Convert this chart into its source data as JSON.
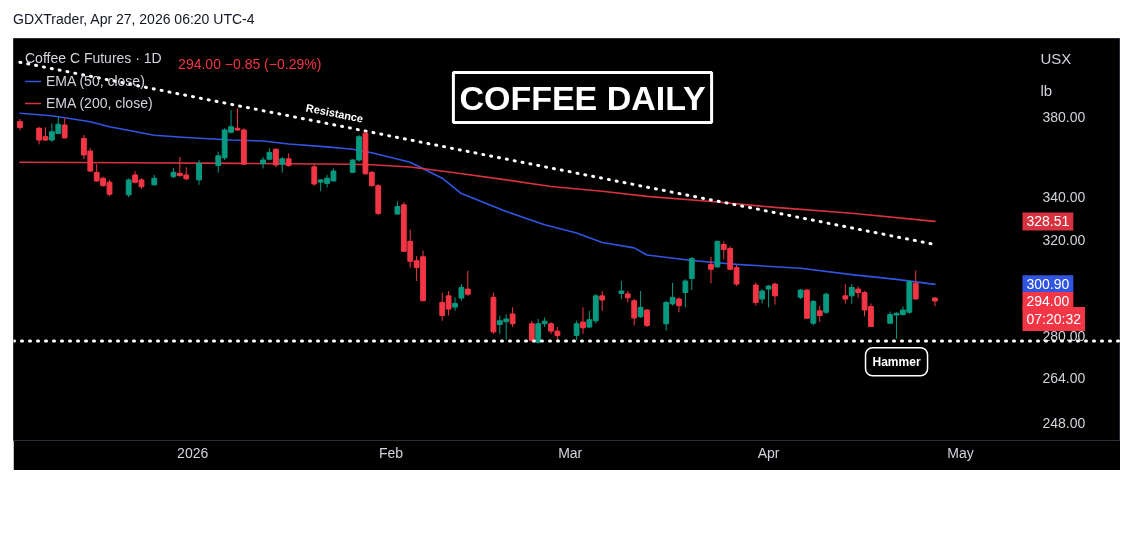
{
  "chart_data": {
    "type": "candlestick",
    "title": "COFFEE DAILY",
    "legend_title": "Coffee C Futures · 1D",
    "legend": "top left",
    "log": true,
    "x": [
      "2025-12-05",
      "2025-12-08",
      "2025-12-09",
      "2025-12-10",
      "2025-12-11",
      "2025-12-12",
      "2025-12-15",
      "2025-12-16",
      "2025-12-17",
      "2025-12-18",
      "2025-12-19",
      "2025-12-22",
      "2025-12-23",
      "2025-12-24",
      "2025-12-26",
      "2025-12-29",
      "2025-12-30",
      "2025-12-31",
      "2026-01-02",
      "2026-01-05",
      "2026-01-06",
      "2026-01-07",
      "2026-01-08",
      "2026-01-09",
      "2026-01-12",
      "2026-01-13",
      "2026-01-14",
      "2026-01-15",
      "2026-01-16",
      "2026-01-20",
      "2026-01-21",
      "2026-01-22",
      "2026-01-23",
      "2026-01-26",
      "2026-01-27",
      "2026-01-28",
      "2026-01-29",
      "2026-01-30",
      "2026-02-02",
      "2026-02-03",
      "2026-02-04",
      "2026-02-05",
      "2026-02-06",
      "2026-02-09",
      "2026-02-10",
      "2026-02-11",
      "2026-02-12",
      "2026-02-13",
      "2026-02-17",
      "2026-02-18",
      "2026-02-19",
      "2026-02-20",
      "2026-02-23",
      "2026-02-24",
      "2026-02-25",
      "2026-02-26",
      "2026-02-27",
      "2026-03-02",
      "2026-03-03",
      "2026-03-04",
      "2026-03-05",
      "2026-03-06",
      "2026-03-09",
      "2026-03-10",
      "2026-03-11",
      "2026-03-12",
      "2026-03-13",
      "2026-03-16",
      "2026-03-17",
      "2026-03-18",
      "2026-03-19",
      "2026-03-20",
      "2026-03-23",
      "2026-03-24",
      "2026-03-25",
      "2026-03-26",
      "2026-03-27",
      "2026-03-30",
      "2026-03-31",
      "2026-04-01",
      "2026-04-02",
      "2026-04-06",
      "2026-04-07",
      "2026-04-08",
      "2026-04-09",
      "2026-04-10",
      "2026-04-13",
      "2026-04-14",
      "2026-04-15",
      "2026-04-16",
      "2026-04-17",
      "2026-04-20",
      "2026-04-21",
      "2026-04-22",
      "2026-04-23",
      "2026-04-24",
      "2026-04-27"
    ],
    "ohlc": [
      [
        377.6,
        379.0,
        373.0,
        374.5
      ],
      [
        374.1,
        374.9,
        365.8,
        368.0
      ],
      [
        369.7,
        374.6,
        367.5,
        368.0
      ],
      [
        368.0,
        376.7,
        367.1,
        372.3
      ],
      [
        371.4,
        380.2,
        371.0,
        376.2
      ],
      [
        375.8,
        379.3,
        368.8,
        369.1
      ],
      [
        368.8,
        370.6,
        358.3,
        360.4
      ],
      [
        362.4,
        363.8,
        352.1,
        352.4
      ],
      [
        351.8,
        355.8,
        347.3,
        347.6
      ],
      [
        348.9,
        349.7,
        344.9,
        345.3
      ],
      [
        347.0,
        348.1,
        340.3,
        341.2
      ],
      [
        340.9,
        348.9,
        339.8,
        348.1
      ],
      [
        350.5,
        352.4,
        346.4,
        346.9
      ],
      [
        348.1,
        348.9,
        343.8,
        344.8
      ],
      [
        345.7,
        350.5,
        345.4,
        348.9
      ],
      [
        349.7,
        354.0,
        348.9,
        351.8
      ],
      [
        351.3,
        359.4,
        349.7,
        350.2
      ],
      [
        350.5,
        354.3,
        348.1,
        348.6
      ],
      [
        348.1,
        357.9,
        345.7,
        356.3
      ],
      [
        355.1,
        362.1,
        351.6,
        360.0
      ],
      [
        359.0,
        374.1,
        357.9,
        373.2
      ],
      [
        372.0,
        383.7,
        371.5,
        374.9
      ],
      [
        374.1,
        384.6,
        372.7,
        373.2
      ],
      [
        373.2,
        374.1,
        355.6,
        355.8
      ],
      [
        356.0,
        359.4,
        353.7,
        357.9
      ],
      [
        358.3,
        363.8,
        357.9,
        361.7
      ],
      [
        363.3,
        363.8,
        354.5,
        355.4
      ],
      [
        355.8,
        359.4,
        351.6,
        358.5
      ],
      [
        358.5,
        361.2,
        354.6,
        355.1
      ],
      [
        354.5,
        355.8,
        345.3,
        346.1
      ],
      [
        347.0,
        348.5,
        342.6,
        348.1
      ],
      [
        346.4,
        350.5,
        344.4,
        348.9
      ],
      [
        347.6,
        353.7,
        347.3,
        352.4
      ],
      [
        351.8,
        358.3,
        351.6,
        357.9
      ],
      [
        357.9,
        370.6,
        357.1,
        369.7
      ],
      [
        371.5,
        372.3,
        350.5,
        351.1
      ],
      [
        351.8,
        352.4,
        344.9,
        345.3
      ],
      [
        345.3,
        346.0,
        331.4,
        332.2
      ],
      [
        331.9,
        337.9,
        331.6,
        335.4
      ],
      [
        336.2,
        337.5,
        314.9,
        315.1
      ],
      [
        319.5,
        324.8,
        308.0,
        310.7
      ],
      [
        311.0,
        313.0,
        302.3,
        308.0
      ],
      [
        312.7,
        315.4,
        293.9,
        294.1
      ],
      [
        293.4,
        297.4,
        286.0,
        288.1
      ],
      [
        296.1,
        298.1,
        288.1,
        290.7
      ],
      [
        291.5,
        295.5,
        290.0,
        293.0
      ],
      [
        295.2,
        301.0,
        294.1,
        299.6
      ],
      [
        298.9,
        306.6,
        296.2,
        296.8
      ],
      [
        295.5,
        297.4,
        280.8,
        281.6
      ],
      [
        284.5,
        288.1,
        280.8,
        286.0
      ],
      [
        285.6,
        288.7,
        278.5,
        286.7
      ],
      [
        288.7,
        291.4,
        283.5,
        284.8
      ],
      [
        284.8,
        286.0,
        277.7,
        278.3
      ],
      [
        277.5,
        286.7,
        277.0,
        284.8
      ],
      [
        284.8,
        287.3,
        283.5,
        285.8
      ],
      [
        284.8,
        285.5,
        280.8,
        281.9
      ],
      [
        281.9,
        283.5,
        278.3,
        280.2
      ],
      [
        280.2,
        286.0,
        278.3,
        284.8
      ],
      [
        285.5,
        291.4,
        280.8,
        283.2
      ],
      [
        283.5,
        290.0,
        283.2,
        286.4
      ],
      [
        286.0,
        296.8,
        284.8,
        296.1
      ],
      [
        296.1,
        298.1,
        290.0,
        294.4
      ],
      [
        297.1,
        302.3,
        294.8,
        298.1
      ],
      [
        296.9,
        298.1,
        293.4,
        295.3
      ],
      [
        294.1,
        294.8,
        284.1,
        287.1
      ],
      [
        287.6,
        298.1,
        287.1,
        291.4
      ],
      [
        290.3,
        290.7,
        283.5,
        284.1
      ],
      [
        284.8,
        294.1,
        282.1,
        293.4
      ],
      [
        292.8,
        301.6,
        292.1,
        295.5
      ],
      [
        294.8,
        295.5,
        289.4,
        292.1
      ],
      [
        297.5,
        303.0,
        291.4,
        302.3
      ],
      [
        303.4,
        312.6,
        298.5,
        311.9
      ],
      [
        309.4,
        312.6,
        301.3,
        307.3
      ],
      [
        308.3,
        319.8,
        308.0,
        319.5
      ],
      [
        318.1,
        319.5,
        311.5,
        315.9
      ],
      [
        316.3,
        317.4,
        306.8,
        307.3
      ],
      [
        308.0,
        309.1,
        300.2,
        301.0
      ],
      [
        300.6,
        301.6,
        292.1,
        293.4
      ],
      [
        294.8,
        298.9,
        293.0,
        298.1
      ],
      [
        298.9,
        300.6,
        291.4,
        300.2
      ],
      [
        301.0,
        301.6,
        292.5,
        296.1
      ],
      [
        295.5,
        298.9,
        294.8,
        298.5
      ],
      [
        298.5,
        298.9,
        286.7,
        287.0
      ],
      [
        285.0,
        294.4,
        284.1,
        293.8
      ],
      [
        290.0,
        292.1,
        285.5,
        288.1
      ],
      [
        289.4,
        297.4,
        288.7,
        296.8
      ],
      [
        296.1,
        301.0,
        293.0,
        294.8
      ],
      [
        296.1,
        301.0,
        292.8,
        299.6
      ],
      [
        298.9,
        300.0,
        295.2,
        297.5
      ],
      [
        297.5,
        298.1,
        287.8,
        290.3
      ],
      [
        291.7,
        293.0,
        283.5,
        283.7
      ],
      [
        285.0,
        289.7,
        284.8,
        288.5
      ],
      [
        288.3,
        289.4,
        278.9,
        289.0
      ],
      [
        288.5,
        291.7,
        288.1,
        290.3
      ],
      [
        289.4,
        302.6,
        288.9,
        302.1
      ],
      [
        301.3,
        306.8,
        294.5,
        294.85
      ],
      [
        295.2,
        295.6,
        291.8,
        294.0
      ]
    ],
    "series": [
      {
        "name": "EMA (50, close)",
        "type": "line",
        "color": "#3155e0",
        "x": [
          "2025-12-05",
          "2025-12-10",
          "2025-12-16",
          "2025-12-19",
          "2025-12-26",
          "2025-12-31",
          "2026-01-07",
          "2026-01-12",
          "2026-01-16",
          "2026-01-22",
          "2026-01-26",
          "2026-01-29",
          "2026-02-04",
          "2026-02-09",
          "2026-02-12",
          "2026-02-19",
          "2026-02-25",
          "2026-03-02",
          "2026-03-06",
          "2026-03-11",
          "2026-03-13",
          "2026-03-20",
          "2026-03-27",
          "2026-04-06",
          "2026-04-14",
          "2026-04-21",
          "2026-04-27"
        ],
        "values": [
          382.0,
          380.7,
          377.5,
          374.9,
          370.5,
          369.3,
          368.0,
          367.5,
          366.0,
          364.5,
          363.3,
          361.5,
          356.8,
          348.9,
          341.5,
          333.1,
          327.0,
          323.2,
          319.0,
          316.6,
          313.5,
          311.1,
          309.4,
          307.7,
          305.0,
          303.0,
          300.9
        ]
      },
      {
        "name": "EMA (200, close)",
        "type": "line",
        "color": "#d6323f",
        "x": [
          "2025-12-05",
          "2025-12-22",
          "2026-01-08",
          "2026-01-26",
          "2026-01-29",
          "2026-02-04",
          "2026-02-11",
          "2026-02-19",
          "2026-02-26",
          "2026-03-06",
          "2026-03-13",
          "2026-03-24",
          "2026-04-02",
          "2026-04-14",
          "2026-04-27"
        ],
        "values": [
          356.8,
          356.5,
          356.2,
          355.8,
          355.5,
          354.4,
          351.6,
          348.1,
          344.9,
          342.6,
          340.2,
          337.5,
          335.0,
          332.3,
          328.51
        ]
      },
      {
        "type": "line",
        "color": "#ffffff",
        "line_style": "dotted",
        "x": [
          "2025-12-05",
          "2026-04-27"
        ],
        "values": [
          410.2,
          318.1
        ]
      }
    ],
    "ref_lines": [
      {
        "axis": "y",
        "value": 278,
        "color": "#ffffff",
        "line_style": "dotted"
      }
    ],
    "annotations": [
      "GDXTrader, Apr 27, 2026 06:20 UTC-4",
      "294.00 −0.85 (−0.29%)",
      "USX",
      "lb",
      "328.51",
      "300.90",
      "294.00",
      "07:20:32",
      {
        "text": "Resistance",
        "x": "2026-01-23",
        "y": 376.9
      },
      {
        "text": "Hammer",
        "x": "2026-04-21",
        "y": 278.9
      }
    ],
    "xlim": [
      "2025-12-04",
      "2026-05-26"
    ],
    "xticks": [
      {
        "value": "2026-01-01",
        "label": "2026"
      },
      {
        "value": "2026-02-01",
        "label": "Feb"
      },
      {
        "value": "2026-03-01",
        "label": "Mar"
      },
      {
        "value": "2026-04-01",
        "label": "Apr"
      },
      {
        "value": "2026-05-01",
        "label": "May"
      }
    ],
    "ylim": [
      242,
      424
    ],
    "yticks": [
      {
        "value": 248,
        "label": "248.00"
      },
      {
        "value": 264,
        "label": "264.00"
      },
      {
        "value": 280,
        "label": "280.00"
      },
      {
        "value": 320,
        "label": "320.00"
      },
      {
        "value": 340,
        "label": "340.00"
      },
      {
        "value": 380,
        "label": "380.00"
      }
    ]
  }
}
